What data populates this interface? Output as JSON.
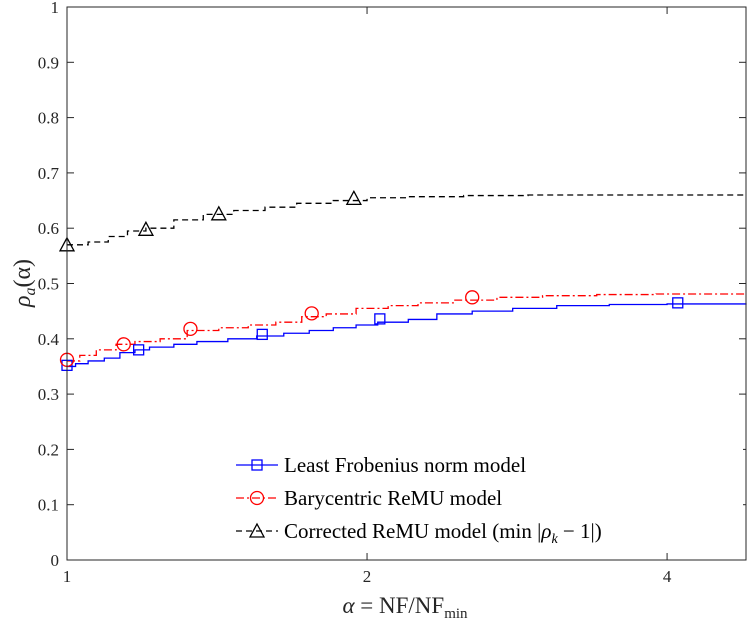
{
  "chart_data": {
    "type": "line",
    "title": "",
    "xlabel": "α = NF/NF_min",
    "xlabel_parts": {
      "lhs": "α",
      "eq": " = ",
      "nf": "NF/NF",
      "sub": "min"
    },
    "ylabel": "ρ_a(α)",
    "ylabel_parts": {
      "rho": "ρ",
      "sub": "a",
      "arg": "(α)"
    },
    "xscale": "log2",
    "xlim": [
      1,
      4.8
    ],
    "ylim": [
      0,
      1
    ],
    "xticks": [
      1,
      2,
      4
    ],
    "xtick_labels": [
      "1",
      "2",
      "4"
    ],
    "yticks": [
      0,
      0.1,
      0.2,
      0.3,
      0.4,
      0.5,
      0.6,
      0.7,
      0.8,
      0.9,
      1
    ],
    "ytick_labels": [
      "0",
      "0.1",
      "0.2",
      "0.3",
      "0.4",
      "0.5",
      "0.6",
      "0.7",
      "0.8",
      "0.9",
      "1"
    ],
    "grid": false,
    "legend_position": "bottom-right",
    "series": [
      {
        "name": "Least Frobenius norm model",
        "color": "#0000ff",
        "dash": "solid",
        "marker": "square",
        "x": [
          1.0,
          1.02,
          1.05,
          1.09,
          1.13,
          1.17,
          1.21,
          1.28,
          1.35,
          1.45,
          1.55,
          1.65,
          1.75,
          1.85,
          1.95,
          2.05,
          2.2,
          2.35,
          2.55,
          2.8,
          3.1,
          3.5,
          4.0,
          4.8
        ],
        "y": [
          0.35,
          0.355,
          0.36,
          0.365,
          0.375,
          0.38,
          0.385,
          0.39,
          0.395,
          0.4,
          0.405,
          0.41,
          0.415,
          0.42,
          0.425,
          0.43,
          0.435,
          0.445,
          0.45,
          0.455,
          0.46,
          0.462,
          0.463,
          0.464
        ],
        "markers_x": [
          1.0,
          1.18,
          1.57,
          2.06,
          4.1
        ],
        "markers_y": [
          0.352,
          0.38,
          0.408,
          0.436,
          0.465
        ]
      },
      {
        "name": "Barycentric ReMU model",
        "color": "#ff0000",
        "dash": "dashdot",
        "marker": "circle",
        "x": [
          1.0,
          1.03,
          1.07,
          1.12,
          1.17,
          1.24,
          1.32,
          1.42,
          1.52,
          1.62,
          1.72,
          1.82,
          1.95,
          2.1,
          2.25,
          2.45,
          2.7,
          3.0,
          3.4,
          3.9,
          4.8
        ],
        "y": [
          0.36,
          0.37,
          0.38,
          0.39,
          0.395,
          0.4,
          0.415,
          0.42,
          0.425,
          0.43,
          0.44,
          0.445,
          0.455,
          0.46,
          0.465,
          0.47,
          0.475,
          0.478,
          0.48,
          0.481,
          0.482
        ],
        "markers_x": [
          1.0,
          1.14,
          1.33,
          1.76,
          2.55
        ],
        "markers_y": [
          0.362,
          0.39,
          0.418,
          0.446,
          0.475
        ]
      },
      {
        "name": "Corrected ReMU model (min |ρ_k − 1|)",
        "color": "#000000",
        "dash": "dashed",
        "marker": "triangle",
        "x": [
          1.0,
          1.05,
          1.1,
          1.15,
          1.2,
          1.28,
          1.37,
          1.47,
          1.58,
          1.7,
          1.85,
          2.0,
          2.2,
          2.5,
          2.9,
          3.5,
          4.8
        ],
        "y": [
          0.57,
          0.575,
          0.585,
          0.595,
          0.6,
          0.615,
          0.625,
          0.632,
          0.638,
          0.645,
          0.65,
          0.655,
          0.657,
          0.659,
          0.66,
          0.66,
          0.66
        ],
        "markers_x": [
          1.0,
          1.2,
          1.42,
          1.94
        ],
        "markers_y": [
          0.57,
          0.598,
          0.626,
          0.654
        ]
      }
    ]
  },
  "legend": {
    "items": [
      {
        "label": "Least Frobenius norm model",
        "color": "#0000ff",
        "marker": "square"
      },
      {
        "label": "Barycentric ReMU model",
        "color": "#ff0000",
        "marker": "circle"
      },
      {
        "label_prefix": "Corrected ReMU model (",
        "label_min": "min",
        "label_abs_open": " |",
        "label_rho": "ρ",
        "label_rho_sub": "k",
        "label_minus": " − 1|)",
        "color": "#000000",
        "marker": "triangle"
      }
    ]
  },
  "colors": {
    "axis": "#262626",
    "background": "#ffffff"
  }
}
